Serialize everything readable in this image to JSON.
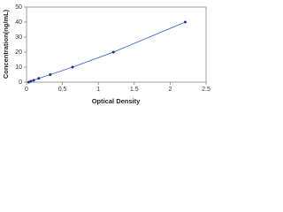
{
  "chart_data": {
    "type": "scatter",
    "x_label": "Optical Density",
    "y_label": "Concentration(ng/mL)",
    "x": [
      0.03,
      0.06,
      0.1,
      0.17,
      0.33,
      0.64,
      1.21,
      2.21
    ],
    "values": [
      0,
      0.625,
      1.25,
      2.5,
      5,
      10,
      20,
      40
    ],
    "color": "#1f2f8f",
    "line_color": "#3a5fcd",
    "xlim": [
      0,
      2.5
    ],
    "xticks": [
      0,
      0.5,
      1,
      1.5,
      2,
      2.5
    ],
    "ylim": [
      0,
      50
    ],
    "yticks": [
      0,
      10,
      20,
      30,
      40,
      50
    ]
  }
}
